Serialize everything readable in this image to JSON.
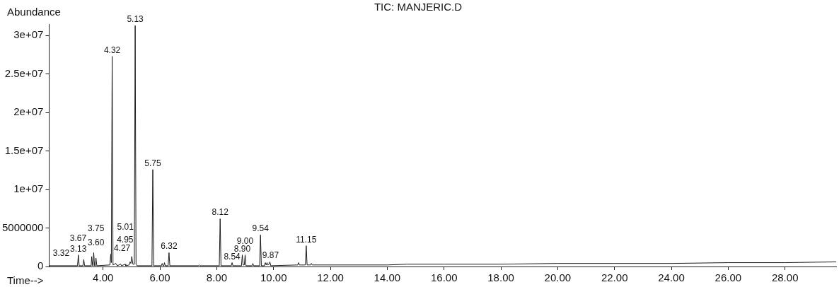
{
  "chart_data": {
    "type": "line",
    "title": "TIC: MANJERIC.D",
    "xlabel": "Time-->",
    "ylabel": "Abundance",
    "color": "#1a1a1a",
    "x": [
      2.1,
      3.1,
      3.13,
      3.16,
      3.29,
      3.32,
      3.35,
      3.58,
      3.6,
      3.63,
      3.65,
      3.67,
      3.7,
      3.73,
      3.75,
      3.78,
      4.24,
      4.27,
      4.29,
      4.32,
      4.35,
      4.45,
      4.5,
      4.62,
      4.65,
      4.78,
      4.8,
      4.92,
      4.95,
      4.98,
      5.01,
      5.05,
      5.1,
      5.13,
      5.16,
      5.2,
      5.72,
      5.75,
      5.78,
      6.05,
      6.08,
      6.11,
      6.14,
      6.16,
      6.19,
      6.29,
      6.32,
      6.35,
      7.35,
      7.38,
      7.41,
      8.09,
      8.12,
      8.15,
      8.51,
      8.54,
      8.57,
      8.87,
      8.9,
      8.93,
      8.97,
      9.0,
      9.03,
      9.24,
      9.27,
      9.3,
      9.51,
      9.54,
      9.57,
      9.68,
      9.71,
      9.74,
      9.77,
      9.8,
      9.84,
      9.87,
      9.9,
      10.85,
      10.88,
      10.91,
      11.12,
      11.15,
      11.18,
      11.3,
      11.33,
      11.36,
      12,
      14,
      14.7,
      16,
      18,
      20,
      22,
      24,
      26,
      28,
      29.8
    ],
    "values": [
      100000,
      100000,
      1500000,
      100000,
      100000,
      900000,
      100000,
      100000,
      1300000,
      100000,
      100000,
      1800000,
      100000,
      100000,
      1100000,
      100000,
      200000,
      1600000,
      500000,
      27300000,
      200000,
      400000,
      100000,
      300000,
      100000,
      300000,
      100000,
      200000,
      600000,
      400000,
      1300000,
      300000,
      300000,
      31300000,
      300000,
      100000,
      100000,
      12600000,
      100000,
      100000,
      400000,
      100000,
      100000,
      500000,
      100000,
      100000,
      1800000,
      100000,
      100000,
      200000,
      100000,
      100000,
      6200000,
      100000,
      100000,
      500000,
      100000,
      100000,
      1500000,
      200000,
      200000,
      1500000,
      100000,
      100000,
      400000,
      100000,
      100000,
      4100000,
      100000,
      100000,
      500000,
      200000,
      500000,
      200000,
      300000,
      600000,
      100000,
      200000,
      500000,
      200000,
      200000,
      2700000,
      200000,
      200000,
      400000,
      200000,
      200000,
      200000,
      300000,
      300000,
      300000,
      400000,
      400000,
      400000,
      500000,
      500000,
      600000
    ],
    "xlim": [
      2.1,
      29.8
    ],
    "xticks": [
      {
        "value": 4,
        "label": "4.00"
      },
      {
        "value": 6,
        "label": "6.00"
      },
      {
        "value": 8,
        "label": "8.00"
      },
      {
        "value": 10,
        "label": "10.00"
      },
      {
        "value": 12,
        "label": "12.00"
      },
      {
        "value": 14,
        "label": "14.00"
      },
      {
        "value": 16,
        "label": "16.00"
      },
      {
        "value": 18,
        "label": "18.00"
      },
      {
        "value": 20,
        "label": "20.00"
      },
      {
        "value": 22,
        "label": "22.00"
      },
      {
        "value": 24,
        "label": "24.00"
      },
      {
        "value": 26,
        "label": "26.00"
      },
      {
        "value": 28,
        "label": "28.00"
      }
    ],
    "ylim": [
      0,
      31500000
    ],
    "yticks": [
      0,
      5000000,
      {
        "value": 10000000,
        "label": "1e+07"
      },
      {
        "value": 15000000,
        "label": "1.5e+07"
      },
      {
        "value": 20000000,
        "label": "2e+07"
      },
      {
        "value": 25000000,
        "label": "2.5e+07"
      },
      {
        "value": 30000000,
        "label": "3e+07"
      }
    ],
    "grid": false,
    "legend": false,
    "annotations": [
      {
        "text": "3.13",
        "x": 3.13,
        "y": 1500000
      },
      {
        "text": "3.32",
        "x": 3.32,
        "y": 900000
      },
      {
        "text": "3.60",
        "x": 3.6,
        "y": 1300000
      },
      {
        "text": "3.67",
        "x": 3.67,
        "y": 1800000
      },
      {
        "text": "3.75",
        "x": 3.75,
        "y": 1100000
      },
      {
        "text": "4.27",
        "x": 4.27,
        "y": 1600000
      },
      {
        "text": "4.32",
        "x": 4.32,
        "y": 27300000
      },
      {
        "text": "4.95",
        "x": 4.95,
        "y": 600000
      },
      {
        "text": "5.01",
        "x": 5.01,
        "y": 1300000
      },
      {
        "text": "5.13",
        "x": 5.13,
        "y": 31300000
      },
      {
        "text": "5.75",
        "x": 5.75,
        "y": 12600000
      },
      {
        "text": "6.32",
        "x": 6.32,
        "y": 1800000
      },
      {
        "text": "8.12",
        "x": 8.12,
        "y": 6200000
      },
      {
        "text": "8.54",
        "x": 8.54,
        "y": 500000
      },
      {
        "text": "8.90",
        "x": 8.9,
        "y": 1500000
      },
      {
        "text": "9.00",
        "x": 9.0,
        "y": 1500000
      },
      {
        "text": "9.54",
        "x": 9.54,
        "y": 4100000
      },
      {
        "text": "9.87",
        "x": 9.87,
        "y": 600000
      },
      {
        "text": "11.15",
        "x": 11.15,
        "y": 2700000
      }
    ]
  }
}
